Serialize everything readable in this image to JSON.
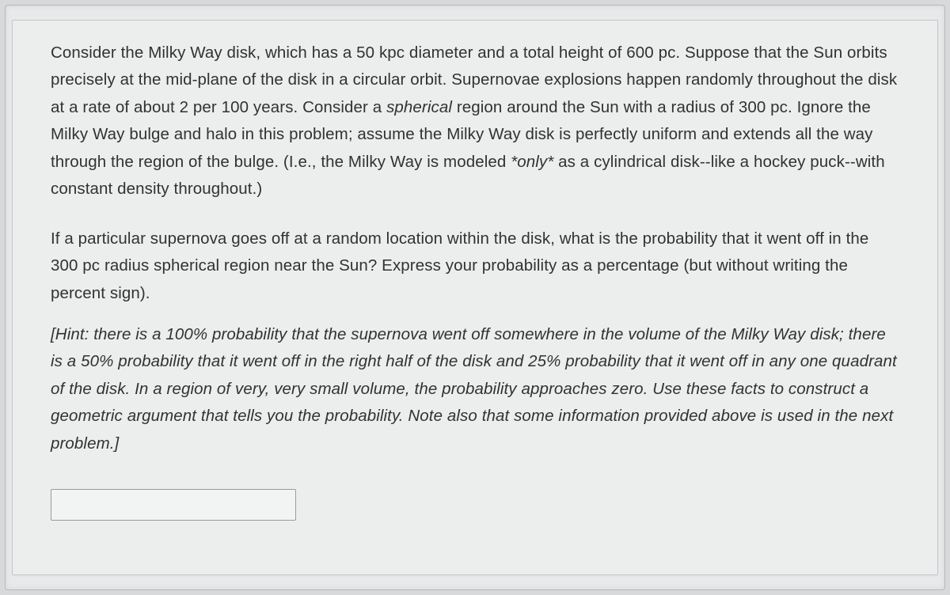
{
  "problem": {
    "context_pre": "Consider the Milky Way disk, which has a 50 kpc diameter and a total height of 600 pc. Suppose that the Sun orbits precisely at the mid-plane of the disk in a circular orbit. Supernovae explosions happen randomly throughout the disk at a rate of about 2 per 100 years. Consider a ",
    "context_em1": "spherical",
    "context_mid1": " region around the Sun with a radius of 300 pc. Ignore the Milky Way bulge and halo in this problem; assume the Milky Way disk is perfectly uniform and extends all the way through the region of the bulge. (I.e., the Milky Way is modeled ",
    "context_em2": "*only*",
    "context_post": " as a cylindrical disk--like a hockey puck--with constant density throughout.)",
    "question": "If a particular supernova goes off at a random location within the disk, what is the probability that it went off in the 300 pc radius spherical region near the Sun? Express your probability as a percentage (but without writing the percent sign).",
    "hint": "[Hint: there is a 100% probability that the supernova went off somewhere in the volume of the Milky Way disk; there is a 50% probability that it went off in the right half of the disk and 25% probability that it went off in any one quadrant of the disk. In a region of very, very small volume, the probability approaches zero. Use these facts to construct a geometric argument that tells you the probability. Note also that some information provided above is used in the next problem.]",
    "answer_value": ""
  },
  "style": {
    "text_color": "#313233",
    "bg_outer": "#d8d9da",
    "bg_frame": "#e8e9ea",
    "bg_card": "#eceded",
    "border_color": "#c6c7c8",
    "input_border": "#9a9b9c",
    "font_size_pt": 15,
    "line_height": 1.68
  }
}
